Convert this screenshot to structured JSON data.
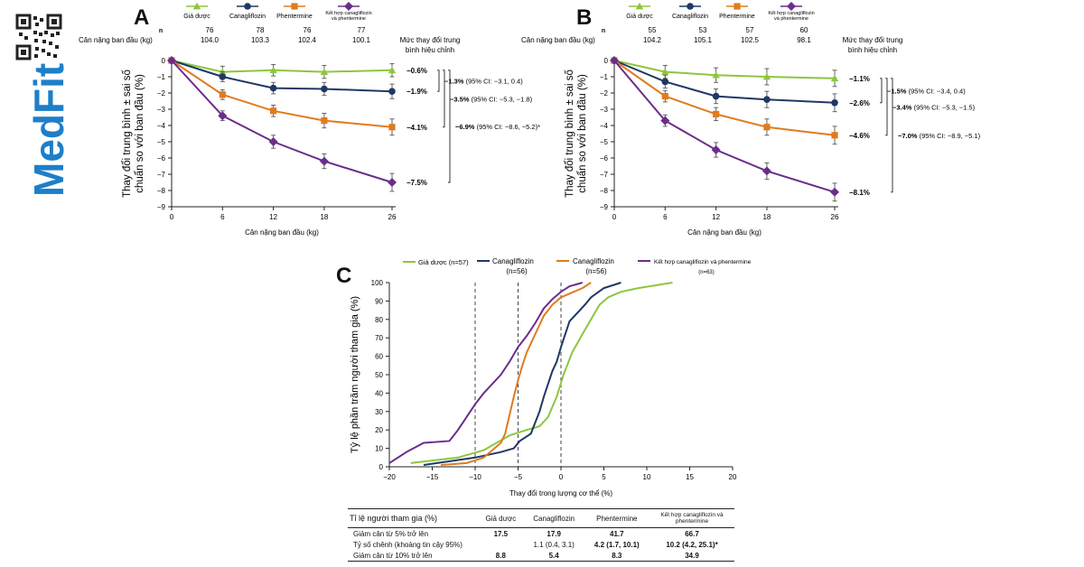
{
  "brand": {
    "name": "MedFit",
    "qr_icon": "qr-code-icon",
    "color": "#1e7ec8"
  },
  "colors": {
    "placebo": "#8dc63f",
    "cana": "#1f3864",
    "phen": "#e07b1f",
    "combo": "#6b2d8b"
  },
  "legend_ab": {
    "placebo": "Giả dược",
    "cana": "Canagliflozin",
    "phen": "Phentermine",
    "combo_line1": "Kết hợp canagliflozin",
    "combo_line2": "và phentermine"
  },
  "panels": [
    {
      "letter": "A",
      "n_label": "n",
      "baseline_label": "Cân nặng ban đầu (kg)",
      "n": [
        "76",
        "78",
        "76",
        "77"
      ],
      "baseline": [
        "104.0",
        "103.3",
        "102.4",
        "100.1"
      ],
      "mean_change_label_1": "Mức thay đổi trung",
      "mean_change_label_2": "bình hiệu chỉnh",
      "end_labels": [
        "−0.6%",
        "−1.9%",
        "−4.1%",
        "−7.5%"
      ],
      "diffs": [
        {
          "bold": "−1.3%",
          "rest": " (95% CI: −3.1, 0.4)"
        },
        {
          "bold": "−3.5%",
          "rest": " (95% CI: −5.3, −1.8)"
        },
        {
          "bold": "−6.9%",
          "rest": " (95% CI: −8.6, −5.2)*"
        }
      ],
      "ylabel_1": "Thay đổi trung bình ± sai số",
      "ylabel_2": "chuẩn so với ban đầu (%)",
      "xlabel": "Cân nặng ban đầu (kg)"
    },
    {
      "letter": "B",
      "n_label": "n",
      "baseline_label": "Cân nặng ban đầu (kg)",
      "n": [
        "55",
        "53",
        "57",
        "60"
      ],
      "baseline": [
        "104.2",
        "105.1",
        "102.5",
        "98.1"
      ],
      "mean_change_label_1": "Mức thay đổi trung",
      "mean_change_label_2": "bình hiệu chỉnh",
      "end_labels": [
        "−1.1%",
        "−2.6%",
        "−4.6%",
        "−8.1%"
      ],
      "diffs": [
        {
          "bold": "−1.5%",
          "rest": " (95% CI: −3.4, 0.4)"
        },
        {
          "bold": "−3.4%",
          "rest": " (95% CI: −5.3, −1.5)"
        },
        {
          "bold": "−7.0%",
          "rest": " (95% CI: −8.9, −5.1)"
        }
      ],
      "ylabel_1": "Thay đổi trung bình ± sai số",
      "ylabel_2": "chuẩn so với ban đầu (%)",
      "xlabel": "Cân nặng ban đầu (kg)"
    }
  ],
  "chart_data": [
    {
      "type": "line",
      "panel": "A",
      "x": [
        0,
        6,
        12,
        18,
        26
      ],
      "xticks": [
        "0",
        "6",
        "12",
        "18",
        "26"
      ],
      "ylim": [
        -9,
        0
      ],
      "yticks": [
        "0",
        "−1",
        "−2",
        "−3",
        "−4",
        "−5",
        "−6",
        "−7",
        "−8",
        "−9"
      ],
      "xlabel": "Cân nặng ban đầu (kg)",
      "ylabel": "Thay đổi trung bình ± sai số chuẩn so với ban đầu (%)",
      "series": [
        {
          "name": "Giả dược",
          "key": "placebo",
          "marker": "triangle",
          "values": [
            0,
            -0.7,
            -0.6,
            -0.7,
            -0.6
          ],
          "err": [
            0,
            0.35,
            0.35,
            0.4,
            0.4
          ]
        },
        {
          "name": "Canagliflozin",
          "key": "cana",
          "marker": "circle",
          "values": [
            0,
            -1.0,
            -1.7,
            -1.75,
            -1.9
          ],
          "err": [
            0,
            0.3,
            0.35,
            0.4,
            0.45
          ]
        },
        {
          "name": "Phentermine",
          "key": "phen",
          "marker": "square",
          "values": [
            0,
            -2.1,
            -3.1,
            -3.7,
            -4.1
          ],
          "err": [
            0,
            0.3,
            0.35,
            0.45,
            0.5
          ]
        },
        {
          "name": "Kết hợp canagliflozin và phentermine",
          "key": "combo",
          "marker": "diamond",
          "values": [
            0,
            -3.4,
            -5.0,
            -6.2,
            -7.5
          ],
          "err": [
            0,
            0.3,
            0.4,
            0.45,
            0.55
          ]
        }
      ]
    },
    {
      "type": "line",
      "panel": "B",
      "x": [
        0,
        6,
        12,
        18,
        26
      ],
      "xticks": [
        "0",
        "6",
        "12",
        "18",
        "26"
      ],
      "ylim": [
        -9,
        0
      ],
      "yticks": [
        "0",
        "−1",
        "−2",
        "−3",
        "−4",
        "−5",
        "−6",
        "−7",
        "−8",
        "−9"
      ],
      "xlabel": "Cân nặng ban đầu (kg)",
      "ylabel": "Thay đổi trung bình ± sai số chuẩn so với ban đầu (%)",
      "series": [
        {
          "name": "Giả dược",
          "key": "placebo",
          "marker": "triangle",
          "values": [
            0,
            -0.7,
            -0.9,
            -1.0,
            -1.1
          ],
          "err": [
            0,
            0.4,
            0.45,
            0.5,
            0.5
          ]
        },
        {
          "name": "Canagliflozin",
          "key": "cana",
          "marker": "circle",
          "values": [
            0,
            -1.3,
            -2.2,
            -2.4,
            -2.6
          ],
          "err": [
            0,
            0.4,
            0.45,
            0.5,
            0.55
          ]
        },
        {
          "name": "Phentermine",
          "key": "phen",
          "marker": "square",
          "values": [
            0,
            -2.2,
            -3.3,
            -4.1,
            -4.6
          ],
          "err": [
            0,
            0.35,
            0.4,
            0.5,
            0.55
          ]
        },
        {
          "name": "Kết hợp canagliflozin và phentermine",
          "key": "combo",
          "marker": "diamond",
          "values": [
            0,
            -3.7,
            -5.5,
            -6.8,
            -8.1
          ],
          "err": [
            0,
            0.35,
            0.45,
            0.5,
            0.55
          ]
        }
      ]
    },
    {
      "type": "line",
      "panel": "C",
      "xlim": [
        -20,
        20
      ],
      "ylim": [
        0,
        100
      ],
      "xticks": [
        "−20",
        "−15",
        "−10",
        "−5",
        "0",
        "5",
        "10",
        "15",
        "20"
      ],
      "yticks": [
        "0",
        "10",
        "20",
        "30",
        "40",
        "50",
        "60",
        "70",
        "80",
        "90",
        "100"
      ],
      "xlabel": "Thay đổi trong lượng cơ thể (%)",
      "ylabel": "Tỷ lệ phần trăm người tham gia (%)",
      "vlines": [
        -10,
        -5,
        0
      ],
      "series": [
        {
          "name": "Giả dược (n=57)",
          "key": "placebo",
          "points": [
            [
              -17.5,
              2
            ],
            [
              -12,
              5
            ],
            [
              -9,
              9
            ],
            [
              -6,
              17
            ],
            [
              -4,
              20
            ],
            [
              -2.5,
              22
            ],
            [
              -1.5,
              27
            ],
            [
              -0.5,
              38
            ],
            [
              0.3,
              50
            ],
            [
              1.3,
              62
            ],
            [
              2.5,
              72
            ],
            [
              3.5,
              80
            ],
            [
              4.5,
              88
            ],
            [
              5.5,
              92
            ],
            [
              7,
              95
            ],
            [
              9,
              97
            ],
            [
              13,
              100
            ]
          ]
        },
        {
          "name": "Canagliflozin (n=56)",
          "key": "cana",
          "points": [
            [
              -16,
              1
            ],
            [
              -10,
              5
            ],
            [
              -7,
              8
            ],
            [
              -5.5,
              10
            ],
            [
              -4.8,
              14
            ],
            [
              -3.5,
              18
            ],
            [
              -3,
              24
            ],
            [
              -2.5,
              30
            ],
            [
              -2,
              38
            ],
            [
              -1.5,
              45
            ],
            [
              -1,
              52
            ],
            [
              -0.5,
              57
            ],
            [
              0,
              65
            ],
            [
              0.5,
              72
            ],
            [
              1,
              79
            ],
            [
              2,
              84
            ],
            [
              2.8,
              88
            ],
            [
              3.5,
              92
            ],
            [
              5,
              97
            ],
            [
              7,
              100
            ]
          ]
        },
        {
          "name": "Canagliflozin (n=56)",
          "key": "phen",
          "points": [
            [
              -14,
              1
            ],
            [
              -11,
              2
            ],
            [
              -9,
              5
            ],
            [
              -8,
              9
            ],
            [
              -7,
              13
            ],
            [
              -6.5,
              18
            ],
            [
              -6,
              28
            ],
            [
              -5.5,
              38
            ],
            [
              -5,
              47
            ],
            [
              -4.5,
              55
            ],
            [
              -4,
              62
            ],
            [
              -3,
              72
            ],
            [
              -2,
              82
            ],
            [
              -1,
              88
            ],
            [
              0,
              92
            ],
            [
              1.5,
              95
            ],
            [
              2.5,
              97
            ],
            [
              3.5,
              100
            ]
          ]
        },
        {
          "name": "Kết hợp canagliflozin và phentermine (n=63)",
          "key": "combo",
          "points": [
            [
              -20,
              2
            ],
            [
              -18,
              8
            ],
            [
              -16,
              13
            ],
            [
              -13,
              14
            ],
            [
              -12,
              20
            ],
            [
              -11,
              27
            ],
            [
              -10,
              34
            ],
            [
              -9,
              40
            ],
            [
              -8,
              45
            ],
            [
              -7,
              50
            ],
            [
              -6,
              57
            ],
            [
              -5,
              65
            ],
            [
              -4,
              71
            ],
            [
              -3,
              78
            ],
            [
              -2,
              86
            ],
            [
              -1,
              91
            ],
            [
              0,
              95
            ],
            [
              1,
              98
            ],
            [
              2.5,
              100
            ]
          ]
        }
      ]
    }
  ],
  "legend_c": {
    "placebo": "Giả dược (n=57)",
    "cana_1": "Canagliflozin",
    "cana_2": "(n=56)",
    "phen_1": "Canagliflozin",
    "phen_2": "(n=56)",
    "combo_1": "Kết hợp canagliflozin và phentermine",
    "combo_2": "(n=63)"
  },
  "table": {
    "headers": [
      "Tỉ lệ người tham gia (%)",
      "Giả dược",
      "Canagliflozin",
      "Phentermine",
      "Kết hợp canagliflozin và phentermine"
    ],
    "rows": [
      {
        "label": "Giảm cân từ 5% trở lên",
        "cells": [
          "17.5",
          "17.9",
          "41.7",
          "66.7"
        ]
      },
      {
        "label": "Tỷ số chênh (khoảng tin cậy 95%)",
        "cells": [
          "",
          "1.1 (0.4, 3.1)",
          "4.2 (1.7, 10.1)",
          "10.2 (4.2, 25.1)*"
        ]
      },
      {
        "label": "Giảm cân từ 10% trở lên",
        "cells": [
          "8.8",
          "5.4",
          "8.3",
          "34.9"
        ]
      }
    ]
  }
}
